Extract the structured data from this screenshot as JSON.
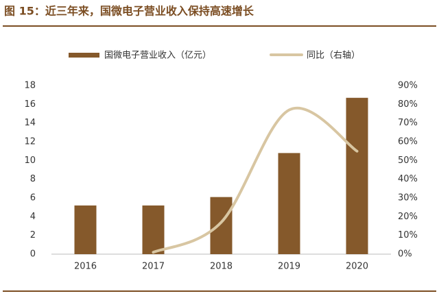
{
  "chart_data": {
    "type": "bar",
    "title": "图 15：近三年来，国微电子营业收入保持高速增长",
    "categories": [
      "2016",
      "2017",
      "2018",
      "2019",
      "2020"
    ],
    "series": [
      {
        "name": "国微电子营业收入（亿元）",
        "color": "#85592b",
        "values": [
          5.2,
          5.2,
          6.1,
          10.8,
          16.7
        ]
      },
      {
        "name": "同比（右轴）",
        "type": "line",
        "axis": "y2",
        "color": "#d8c6a2",
        "values": [
          null,
          1,
          17,
          77,
          55
        ]
      }
    ],
    "ylim": [
      0,
      18
    ],
    "yticks": [
      0,
      2,
      4,
      6,
      8,
      10,
      12,
      14,
      16,
      18
    ],
    "y2lim": [
      0,
      90
    ],
    "y2ticks": [
      {
        "value": 0,
        "label": "0%"
      },
      {
        "value": 10,
        "label": "10%"
      },
      {
        "value": 20,
        "label": "20%"
      },
      {
        "value": 30,
        "label": "30%"
      },
      {
        "value": 40,
        "label": "40%"
      },
      {
        "value": 50,
        "label": "50%"
      },
      {
        "value": 60,
        "label": "60%"
      },
      {
        "value": 70,
        "label": "70%"
      },
      {
        "value": 80,
        "label": "80%"
      },
      {
        "value": 90,
        "label": "90%"
      }
    ],
    "grid": false,
    "legend": "top"
  }
}
